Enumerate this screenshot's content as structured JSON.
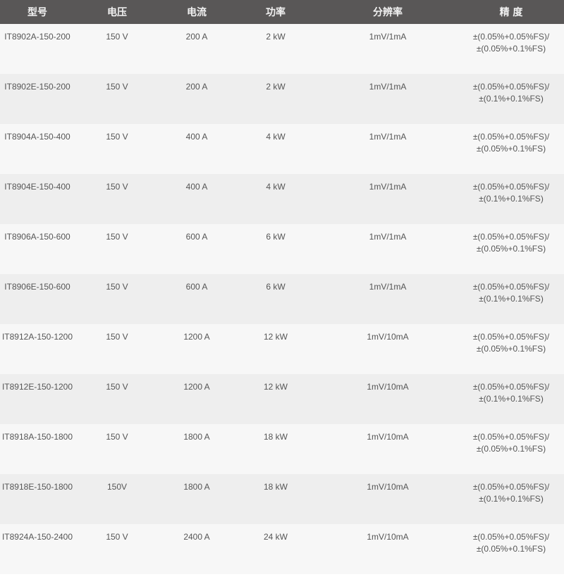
{
  "table": {
    "headers": [
      "型号",
      "电压",
      "电流",
      "功率",
      "分辨率",
      "精 度"
    ],
    "rows": [
      {
        "model": "IT8902A-150-200",
        "voltage": "150 V",
        "current": "200 A",
        "power": "2 kW",
        "resolution": "1mV/1mA",
        "accuracy1": "±(0.05%+0.05%FS)/",
        "accuracy2": "±(0.05%+0.1%FS)"
      },
      {
        "model": "IT8902E-150-200",
        "voltage": "150 V",
        "current": "200 A",
        "power": "2 kW",
        "resolution": "1mV/1mA",
        "accuracy1": "±(0.05%+0.05%FS)/",
        "accuracy2": "±(0.1%+0.1%FS)"
      },
      {
        "model": "IT8904A-150-400",
        "voltage": "150 V",
        "current": "400 A",
        "power": "4 kW",
        "resolution": "1mV/1mA",
        "accuracy1": "±(0.05%+0.05%FS)/",
        "accuracy2": "±(0.05%+0.1%FS)"
      },
      {
        "model": "IT8904E-150-400",
        "voltage": "150 V",
        "current": "400 A",
        "power": "4 kW",
        "resolution": "1mV/1mA",
        "accuracy1": "±(0.05%+0.05%FS)/",
        "accuracy2": "±(0.1%+0.1%FS)"
      },
      {
        "model": "IT8906A-150-600",
        "voltage": "150 V",
        "current": "600 A",
        "power": "6 kW",
        "resolution": "1mV/1mA",
        "accuracy1": "±(0.05%+0.05%FS)/",
        "accuracy2": "±(0.05%+0.1%FS)"
      },
      {
        "model": "IT8906E-150-600",
        "voltage": "150 V",
        "current": "600 A",
        "power": "6 kW",
        "resolution": "1mV/1mA",
        "accuracy1": "±(0.05%+0.05%FS)/",
        "accuracy2": "±(0.1%+0.1%FS)"
      },
      {
        "model": "IT8912A-150-1200",
        "voltage": "150 V",
        "current": "1200 A",
        "power": "12 kW",
        "resolution": "1mV/10mA",
        "accuracy1": "±(0.05%+0.05%FS)/",
        "accuracy2": "±(0.05%+0.1%FS)"
      },
      {
        "model": "IT8912E-150-1200",
        "voltage": "150 V",
        "current": "1200 A",
        "power": "12 kW",
        "resolution": "1mV/10mA",
        "accuracy1": "±(0.05%+0.05%FS)/",
        "accuracy2": "±(0.1%+0.1%FS)"
      },
      {
        "model": "IT8918A-150-1800",
        "voltage": "150 V",
        "current": "1800 A",
        "power": "18 kW",
        "resolution": "1mV/10mA",
        "accuracy1": "±(0.05%+0.05%FS)/",
        "accuracy2": "±(0.05%+0.1%FS)"
      },
      {
        "model": "IT8918E-150-1800",
        "voltage": "150V",
        "current": "1800 A",
        "power": "18 kW",
        "resolution": "1mV/10mA",
        "accuracy1": "±(0.05%+0.05%FS)/",
        "accuracy2": "±(0.1%+0.1%FS)"
      },
      {
        "model": "IT8924A-150-2400",
        "voltage": "150 V",
        "current": "2400 A",
        "power": "24 kW",
        "resolution": "1mV/10mA",
        "accuracy1": "±(0.05%+0.05%FS)/",
        "accuracy2": "±(0.05%+0.1%FS)"
      }
    ]
  }
}
